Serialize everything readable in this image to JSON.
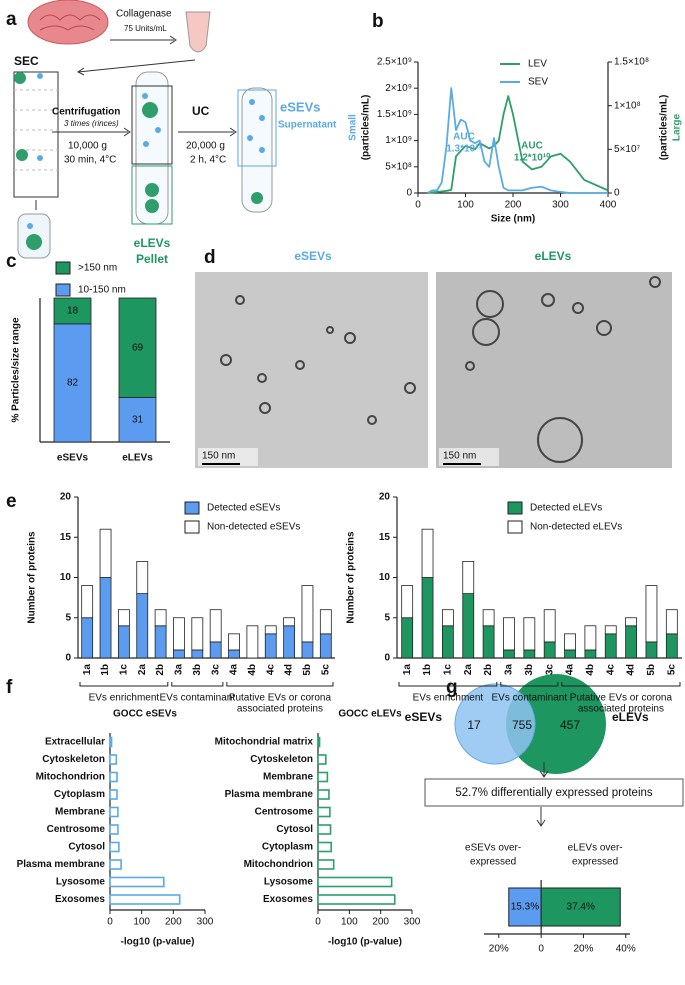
{
  "panel_labels": [
    "a",
    "b",
    "c",
    "d",
    "e",
    "f",
    "g"
  ],
  "panel_a": {
    "enzyme": "Collagenase",
    "enzyme_dose": "75 Units/mL",
    "sec": "SEC",
    "centrifugation": "Centrifugation",
    "rinses": "3 times (rinces)",
    "centrifugation_speed": "10,000 g",
    "centrifugation_time": "30 min, 4°C",
    "uc": "UC",
    "uc_speed": "20,000 g",
    "uc_time": "2 h, 4°C",
    "esevs": "eSEVs",
    "supernatant": "Supernatant",
    "elevs": "eLEVs",
    "pellet": "Pellet"
  },
  "panel_d": {
    "left_title": "eSEVs",
    "right_title": "eLEVs",
    "left_scale": "150 nm",
    "right_scale": "150 nm"
  },
  "panel_g": {
    "left_set": "eSEVs",
    "right_set": "eLEVs",
    "left_only": "17",
    "shared": "755",
    "right_only": "457",
    "summary": "52.7% differentially expressed proteins"
  },
  "chart_data": [
    {
      "type": "line",
      "xlabel": "Size (nm)",
      "ylabel": "Small",
      "ylabel_unit": "(particles/mL)",
      "y2label": "Large",
      "y2label_unit": "(particles/mL)",
      "x": [
        20,
        30,
        40,
        50,
        60,
        70,
        80,
        90,
        100,
        110,
        120,
        130,
        140,
        150,
        160,
        170,
        180,
        190,
        200,
        220,
        240,
        260,
        280,
        300,
        320,
        350,
        400
      ],
      "xlim": [
        0,
        400
      ],
      "xticks": [
        0,
        100,
        200,
        300,
        400
      ],
      "ylim": [
        0,
        2500000000.0
      ],
      "yticks": [
        0,
        {
          "value": 500000000.0,
          "label": "5×10⁸"
        },
        {
          "value": 1000000000.0,
          "label": "1×10⁹"
        },
        {
          "value": 1500000000.0,
          "label": "1.5×10⁹"
        },
        {
          "value": 2000000000.0,
          "label": "2×10⁹"
        },
        {
          "value": 2500000000.0,
          "label": "2.5×10⁹"
        }
      ],
      "y2lim": [
        0,
        150000000.0
      ],
      "y2ticks": [
        0,
        {
          "value": 50000000.0,
          "label": "5×10⁷"
        },
        {
          "value": 100000000.0,
          "label": "1×10⁸"
        },
        {
          "value": 150000000.0,
          "label": "1.5×10⁸"
        }
      ],
      "series": [
        {
          "name": "LEV",
          "color": "#2e9e6b",
          "axis": "y2",
          "values": [
            0,
            600000.0,
            1200000.0,
            1800000.0,
            2500000.0,
            3500000.0,
            42000000.0,
            48000000.0,
            54000000.0,
            52000000.0,
            50000000.0,
            57000000.0,
            54000000.0,
            51000000.0,
            54000000.0,
            60000000.0,
            90000000.0,
            111000000.0,
            90000000.0,
            36000000.0,
            27000000.0,
            30000000.0,
            42000000.0,
            45000000.0,
            36000000.0,
            15000000.0,
            3000000.0
          ]
        },
        {
          "name": "SEV",
          "color": "#5aaae6",
          "values": [
            0,
            50000000.0,
            50000000.0,
            200000000.0,
            900000000.0,
            2000000000.0,
            1200000000.0,
            1400000000.0,
            1350000000.0,
            1000000000.0,
            950000000.0,
            1000000000.0,
            600000000.0,
            500000000.0,
            1050000000.0,
            500000000.0,
            100000000.0,
            50000000.0,
            50000000.0,
            50000000.0,
            100000000.0,
            120000000.0,
            50000000.0,
            20000000.0,
            0,
            0,
            0
          ]
        }
      ],
      "annotations": [
        [
          "AUC",
          "1.3*10¹¹"
        ],
        [
          "AUC",
          "1.2*10¹⁰"
        ]
      ]
    },
    {
      "type": "stacked_bar",
      "ylabel": "% Particles/size range",
      "categories": [
        "eSEVs",
        "eLEVs"
      ],
      "ylim": [
        0,
        100
      ],
      "series": [
        {
          "name": "10-150 nm",
          "color": "#5b9bf0",
          "values": [
            82,
            31
          ]
        },
        {
          "name": ">150 nm",
          "color": "#1e9660",
          "values": [
            18,
            69
          ]
        }
      ]
    },
    {
      "type": "stacked_bar",
      "ylabel": "Number of proteins",
      "categories": [
        "1a",
        "1b",
        "1c",
        "2a",
        "2b",
        "3a",
        "3b",
        "3c",
        "4a",
        "4b",
        "4c",
        "4d",
        "5b",
        "5c"
      ],
      "ylim": [
        0,
        20
      ],
      "yticks": [
        0,
        5,
        10,
        15,
        20
      ],
      "series": [
        {
          "name": "Detected eSEVs",
          "color": "#5b9bf0",
          "values": [
            5,
            10,
            4,
            8,
            4,
            1,
            1,
            2,
            1,
            0,
            3,
            4,
            2,
            3
          ]
        },
        {
          "name": "Non-detected eSEVs",
          "color": "#ffffff",
          "values": [
            4,
            6,
            2,
            4,
            2,
            4,
            4,
            4,
            2,
            4,
            1,
            1,
            7,
            3
          ]
        }
      ],
      "groups": [
        {
          "label": [
            "EVs enrichment"
          ],
          "from": "1a",
          "to": "2b"
        },
        {
          "label": [
            "EVs contaminant"
          ],
          "from": "3a",
          "to": "3c"
        },
        {
          "label": [
            "Putative EVs or corona",
            "associated proteins"
          ],
          "from": "4a",
          "to": "5c"
        }
      ]
    },
    {
      "type": "stacked_bar",
      "ylabel": "Number of proteins",
      "categories": [
        "1a",
        "1b",
        "1c",
        "2a",
        "2b",
        "3a",
        "3b",
        "3c",
        "4a",
        "4b",
        "4c",
        "4d",
        "5b",
        "5c"
      ],
      "ylim": [
        0,
        20
      ],
      "yticks": [
        0,
        5,
        10,
        15,
        20
      ],
      "series": [
        {
          "name": "Detected eLEVs",
          "color": "#1e9660",
          "values": [
            5,
            10,
            4,
            8,
            4,
            1,
            1,
            2,
            1,
            1,
            3,
            4,
            2,
            3
          ]
        },
        {
          "name": "Non-detected eLEVs",
          "color": "#ffffff",
          "values": [
            4,
            6,
            2,
            4,
            2,
            4,
            4,
            4,
            2,
            3,
            1,
            1,
            7,
            3
          ]
        }
      ],
      "groups": [
        {
          "label": [
            "EVs enrichment"
          ],
          "from": "1a",
          "to": "2b"
        },
        {
          "label": [
            "EVs contaminant"
          ],
          "from": "3a",
          "to": "3c"
        },
        {
          "label": [
            "Putative EVs or corona",
            "associated proteins"
          ],
          "from": "4a",
          "to": "5c"
        }
      ]
    },
    {
      "type": "hbar",
      "title": "GOCC eSEVs",
      "categories": [
        "Extracellular",
        "Cytoskeleton",
        "Mitochondrion",
        "Cytoplasm",
        "Membrane",
        "Centrosome",
        "Cytosol",
        "Plasma membrane",
        "Lysosome",
        "Exosomes"
      ],
      "values": [
        5,
        20,
        22,
        22,
        25,
        25,
        28,
        35,
        170,
        220
      ],
      "color": "#5aaae6",
      "xlim": [
        0,
        300
      ],
      "xticks": [
        0,
        100,
        200,
        300
      ],
      "xlabel": "-log10 (p-value)"
    },
    {
      "type": "hbar",
      "title": "GOCC eLEVs",
      "categories": [
        "Mitochondrial matrix",
        "Cytoskeleton",
        "Membrane",
        "Plasma membrane",
        "Centrosome",
        "Cytosol",
        "Cytoplasm",
        "Mitochondrion",
        "Lysosome",
        "Exosomes"
      ],
      "values": [
        5,
        25,
        30,
        35,
        38,
        40,
        42,
        50,
        235,
        245
      ],
      "color": "#2e9e6b",
      "xlim": [
        0,
        300
      ],
      "xticks": [
        0,
        100,
        200,
        300
      ],
      "xlabel": "-log10 (p-value)"
    },
    {
      "type": "diverging_bar",
      "categories": [
        [
          "eSEVs over-",
          "expressed"
        ],
        [
          "eLEVs over-",
          "expressed"
        ]
      ],
      "values": [
        15.3,
        37.4
      ],
      "value_labels": [
        "15.3%",
        "37.4%"
      ],
      "colors": [
        "#5b9bf0",
        "#1e9660"
      ],
      "xlim": [
        -27,
        42
      ],
      "xticks": [
        {
          "value": -20,
          "label": "20%"
        },
        0,
        {
          "value": 20,
          "label": "20%"
        },
        {
          "value": 40,
          "label": "40%"
        }
      ]
    }
  ]
}
